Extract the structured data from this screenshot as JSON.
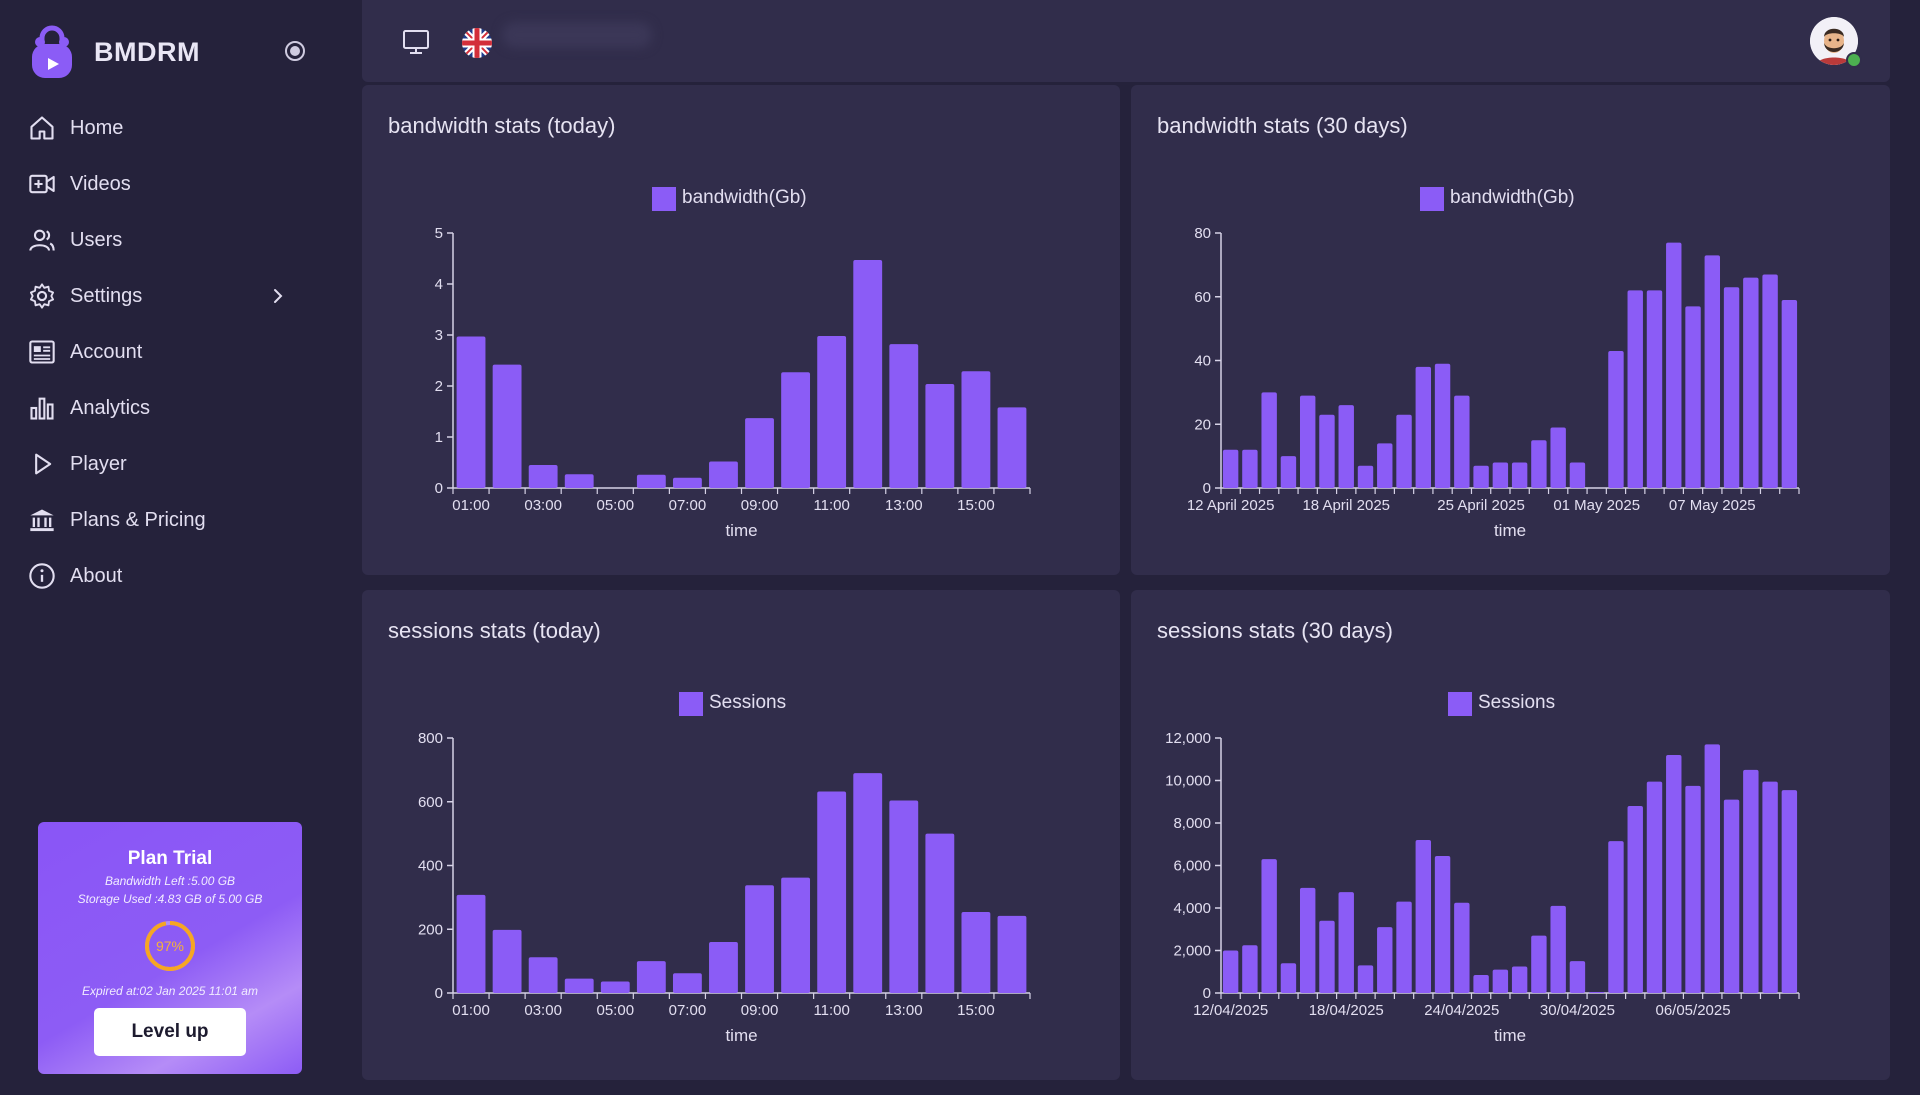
{
  "app": {
    "name": "BMDRM",
    "accent": "#8b5cf6"
  },
  "sidebar": {
    "items": [
      {
        "label": "Home",
        "icon": "home-icon"
      },
      {
        "label": "Videos",
        "icon": "video-plus-icon"
      },
      {
        "label": "Users",
        "icon": "users-icon"
      },
      {
        "label": "Settings",
        "icon": "gear-icon"
      },
      {
        "label": "Account",
        "icon": "id-card-icon"
      },
      {
        "label": "Analytics",
        "icon": "bar-chart-icon"
      },
      {
        "label": "Player",
        "icon": "play-icon"
      },
      {
        "label": "Plans & Pricing",
        "icon": "bank-icon"
      },
      {
        "label": "About",
        "icon": "info-icon"
      }
    ]
  },
  "plan": {
    "title": "Plan Trial",
    "bandwidth_left": "Bandwidth Left :5.00 GB",
    "storage_used": "Storage Used :4.83 GB of 5.00 GB",
    "percent_label": "97%",
    "percent": 97,
    "ring_color": "#f6a623",
    "expired": "Expired at:02 Jan 2025 11:01 am",
    "cta": "Level up"
  },
  "topbar": {
    "language_icon": "uk-flag-icon",
    "display_icon": "monitor-icon",
    "avatar_icon": "avatar-icon",
    "status_color": "#4caf50"
  },
  "chart_data": [
    {
      "type": "bar",
      "title": "bandwidth stats (today)",
      "legend": "bandwidth(Gb)",
      "xlabel": "time",
      "ylabel": "",
      "ylim": [
        0,
        5
      ],
      "yticks": [
        "0",
        "1",
        "2",
        "3",
        "4",
        "5"
      ],
      "ytick_values": [
        0,
        1,
        2,
        3,
        4,
        5
      ],
      "xtick_labels": [
        "01:00",
        "03:00",
        "05:00",
        "07:00",
        "09:00",
        "11:00",
        "13:00",
        "15:00"
      ],
      "categories": [
        "01:00",
        "02:00",
        "03:00",
        "04:00",
        "05:00",
        "06:00",
        "07:00",
        "08:00",
        "09:00",
        "10:00",
        "11:00",
        "12:00",
        "13:00",
        "14:00",
        "15:00",
        "16:00"
      ],
      "values": [
        2.97,
        2.42,
        0.45,
        0.27,
        0,
        0.26,
        0.2,
        0.52,
        1.37,
        2.27,
        2.98,
        4.47,
        2.82,
        2.04,
        2.29,
        1.58
      ]
    },
    {
      "type": "bar",
      "title": "bandwidth stats (30 days)",
      "legend": "bandwidth(Gb)",
      "xlabel": "time",
      "ylabel": "",
      "ylim": [
        0,
        80
      ],
      "yticks": [
        "0",
        "20",
        "40",
        "60",
        "80"
      ],
      "ytick_values": [
        0,
        20,
        40,
        60,
        80
      ],
      "xtick_labels": [
        "12 April 2025",
        "18 April 2025",
        "25 April 2025",
        "01 May 2025",
        "07 May 2025"
      ],
      "xtick_index": [
        0,
        6,
        13,
        19,
        25
      ],
      "values": [
        12,
        12,
        30,
        10,
        29,
        23,
        26,
        7,
        14,
        23,
        38,
        39,
        29,
        7,
        8,
        8,
        15,
        19,
        8,
        0,
        43,
        62,
        62,
        77,
        57,
        73,
        63,
        66,
        67,
        59
      ]
    },
    {
      "type": "bar",
      "title": "sessions stats (today)",
      "legend": "Sessions",
      "xlabel": "time",
      "ylabel": "",
      "ylim": [
        0,
        800
      ],
      "yticks": [
        "0",
        "200",
        "400",
        "600",
        "800"
      ],
      "ytick_values": [
        0,
        200,
        400,
        600,
        800
      ],
      "xtick_labels": [
        "01:00",
        "03:00",
        "05:00",
        "07:00",
        "09:00",
        "11:00",
        "13:00",
        "15:00"
      ],
      "categories": [
        "01:00",
        "02:00",
        "03:00",
        "04:00",
        "05:00",
        "06:00",
        "07:00",
        "08:00",
        "09:00",
        "10:00",
        "11:00",
        "12:00",
        "13:00",
        "14:00",
        "15:00",
        "16:00"
      ],
      "values": [
        308,
        198,
        112,
        45,
        36,
        100,
        62,
        160,
        338,
        362,
        632,
        690,
        604,
        500,
        254,
        242
      ]
    },
    {
      "type": "bar",
      "title": "sessions stats (30 days)",
      "legend": "Sessions",
      "xlabel": "time",
      "ylabel": "",
      "ylim": [
        0,
        12000
      ],
      "yticks": [
        "0",
        "2,000",
        "4,000",
        "6,000",
        "8,000",
        "10,000",
        "12,000"
      ],
      "ytick_values": [
        0,
        2000,
        4000,
        6000,
        8000,
        10000,
        12000
      ],
      "xtick_labels": [
        "12/04/2025",
        "18/04/2025",
        "24/04/2025",
        "30/04/2025",
        "06/05/2025"
      ],
      "xtick_index": [
        0,
        6,
        12,
        18,
        24
      ],
      "values": [
        2000,
        2250,
        6300,
        1400,
        4950,
        3400,
        4750,
        1300,
        3100,
        4300,
        7200,
        6450,
        4250,
        850,
        1100,
        1250,
        2700,
        4100,
        1500,
        50,
        7150,
        8800,
        9950,
        11200,
        9750,
        11700,
        9100,
        10500,
        9950,
        9550
      ]
    }
  ]
}
